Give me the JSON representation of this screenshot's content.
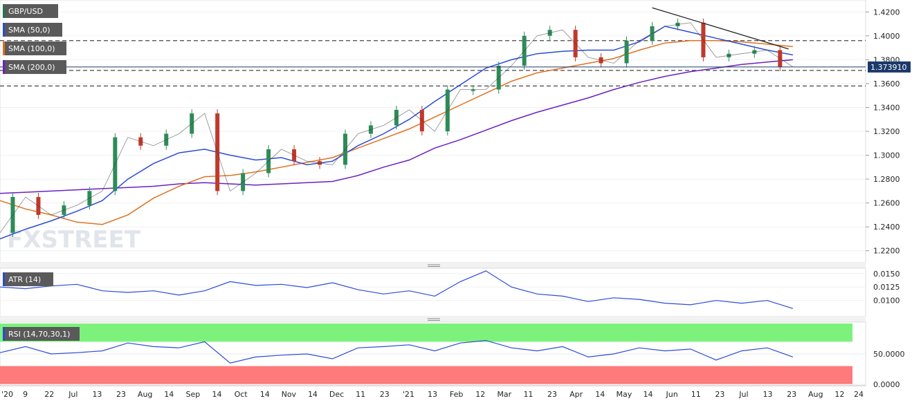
{
  "colors": {
    "candle_up": "#2e8b57",
    "candle_down": "#c0392b",
    "sma50": "#2a4bd7",
    "sma100": "#e07020",
    "sma200": "#6a1fc2",
    "trendline": "#222222",
    "atr": "#2a4bd7",
    "rsi": "#2a4bd7",
    "rsi_overbought": "#7cf27c",
    "rsi_oversold": "#ff7a7a",
    "label_bg": "#5a5a5a",
    "price_marker": "#1b3a6b"
  },
  "chart_data": [
    {
      "type": "line",
      "panel": "price",
      "title": "GBP/USD",
      "indicators": [
        "SMA (50,0)",
        "SMA (100,0)",
        "SMA (200,0)"
      ],
      "last_price_label": "1.373910",
      "last_price": 1.37391,
      "ylim": [
        1.21,
        1.43
      ],
      "yticks": [
        "1.4200",
        "1.4000",
        "1.3800",
        "1.3600",
        "1.3400",
        "1.3200",
        "1.3000",
        "1.2800",
        "1.2600",
        "1.2400",
        "1.2200"
      ],
      "horizontal_levels": [
        1.396,
        1.371,
        1.358
      ],
      "trendline": {
        "from": [
          0.765,
          1.4235
        ],
        "to": [
          0.925,
          1.389
        ]
      },
      "watermark": "FXSTREET",
      "x": [
        0.0,
        0.03,
        0.06,
        0.09,
        0.12,
        0.15,
        0.18,
        0.21,
        0.24,
        0.27,
        0.3,
        0.33,
        0.36,
        0.39,
        0.42,
        0.45,
        0.48,
        0.51,
        0.54,
        0.57,
        0.6,
        0.63,
        0.66,
        0.69,
        0.72,
        0.75,
        0.78,
        0.81,
        0.84,
        0.87,
        0.9,
        0.93
      ],
      "close": [
        1.235,
        1.265,
        1.25,
        1.258,
        1.27,
        1.315,
        1.308,
        1.318,
        1.335,
        1.27,
        1.285,
        1.305,
        1.295,
        1.292,
        1.318,
        1.325,
        1.338,
        1.32,
        1.355,
        1.355,
        1.375,
        1.4,
        1.405,
        1.382,
        1.377,
        1.396,
        1.408,
        1.411,
        1.382,
        1.385,
        1.388,
        1.374
      ],
      "sma50": [
        1.23,
        1.238,
        1.245,
        1.253,
        1.262,
        1.28,
        1.293,
        1.302,
        1.305,
        1.3,
        1.296,
        1.298,
        1.292,
        1.295,
        1.308,
        1.318,
        1.33,
        1.345,
        1.359,
        1.373,
        1.38,
        1.385,
        1.387,
        1.388,
        1.388,
        1.395,
        1.408,
        1.403,
        1.398,
        1.393,
        1.388,
        1.384
      ],
      "sma100": [
        1.262,
        1.255,
        1.25,
        1.244,
        1.242,
        1.25,
        1.264,
        1.274,
        1.282,
        1.283,
        1.286,
        1.29,
        1.294,
        1.298,
        1.306,
        1.314,
        1.322,
        1.332,
        1.342,
        1.352,
        1.362,
        1.369,
        1.373,
        1.377,
        1.381,
        1.388,
        1.394,
        1.396,
        1.396,
        1.395,
        1.393,
        1.391
      ],
      "sma200": [
        1.268,
        1.269,
        1.27,
        1.271,
        1.272,
        1.273,
        1.274,
        1.276,
        1.277,
        1.276,
        1.275,
        1.276,
        1.277,
        1.278,
        1.283,
        1.29,
        1.296,
        1.306,
        1.313,
        1.321,
        1.329,
        1.336,
        1.342,
        1.348,
        1.355,
        1.361,
        1.366,
        1.37,
        1.373,
        1.376,
        1.378,
        1.38
      ]
    },
    {
      "type": "line",
      "panel": "atr",
      "title": "ATR (14)",
      "ylim": [
        0.007,
        0.016
      ],
      "yticks": [
        "0.0150",
        "0.0125",
        "0.0100"
      ],
      "values": [
        0.0125,
        0.0122,
        0.0127,
        0.013,
        0.0118,
        0.0115,
        0.0118,
        0.011,
        0.0118,
        0.0135,
        0.0128,
        0.013,
        0.0124,
        0.0133,
        0.012,
        0.0112,
        0.0118,
        0.0108,
        0.0135,
        0.0155,
        0.0125,
        0.0112,
        0.0108,
        0.0098,
        0.0105,
        0.0102,
        0.0095,
        0.0092,
        0.01,
        0.0095,
        0.01,
        0.0085
      ]
    },
    {
      "type": "line",
      "panel": "rsi",
      "title": "RSI (14,70,30,1)",
      "ylim": [
        0,
        100
      ],
      "yticks": [
        "50.0000",
        "0.0000"
      ],
      "overbought": 70,
      "oversold": 30,
      "values": [
        52,
        62,
        50,
        52,
        55,
        68,
        62,
        60,
        70,
        35,
        45,
        48,
        50,
        42,
        60,
        62,
        65,
        55,
        68,
        72,
        60,
        55,
        62,
        45,
        50,
        60,
        55,
        58,
        40,
        55,
        60,
        45
      ]
    }
  ],
  "x_axis": {
    "labels": [
      "'20",
      "9",
      "22",
      "Jul",
      "13",
      "23",
      "Aug",
      "14",
      "Sep",
      "14",
      "Oct",
      "14",
      "Nov",
      "14",
      "Dec",
      "11",
      "23",
      "'21",
      "13",
      "Feb",
      "12",
      "Mar",
      "11",
      "23",
      "Apr",
      "14",
      "May",
      "14",
      "Jun",
      "11",
      "23",
      "Jul",
      "13",
      "23",
      "Aug",
      "12",
      "24"
    ]
  }
}
